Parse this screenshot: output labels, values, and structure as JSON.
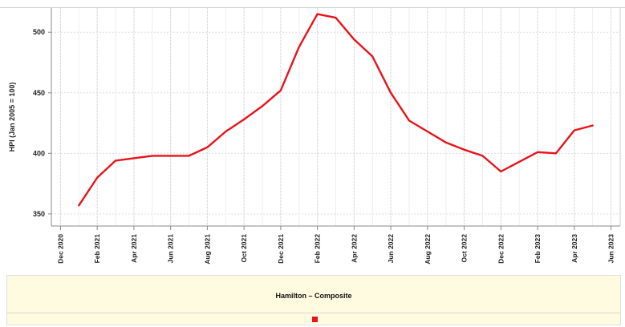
{
  "chart_data": {
    "type": "line",
    "title": "",
    "xlabel": "",
    "ylabel": "HPI (Jan 2005 = 100)",
    "ylim": [
      340,
      520
    ],
    "yticks": [
      350,
      400,
      450,
      500
    ],
    "xlim": [
      "2020-12",
      "2023-06"
    ],
    "xticks": [
      "Dec 2020",
      "Feb 2021",
      "Apr 2021",
      "Jun 2021",
      "Aug 2021",
      "Oct 2021",
      "Dec 2021",
      "Feb 2022",
      "Apr 2022",
      "Jun 2022",
      "Aug 2022",
      "Oct 2022",
      "Dec 2022",
      "Feb 2023",
      "Apr 2023",
      "Jun 2023"
    ],
    "grid": true,
    "legend_position": "bottom",
    "series": [
      {
        "name": "Hamilton – Composite",
        "color": "#e8131b",
        "x": [
          "2021-01",
          "2021-02",
          "2021-03",
          "2021-04",
          "2021-05",
          "2021-06",
          "2021-07",
          "2021-08",
          "2021-09",
          "2021-10",
          "2021-11",
          "2021-12",
          "2022-01",
          "2022-02",
          "2022-03",
          "2022-04",
          "2022-05",
          "2022-06",
          "2022-07",
          "2022-08",
          "2022-09",
          "2022-10",
          "2022-11",
          "2022-12",
          "2023-01",
          "2023-02",
          "2023-03",
          "2023-04",
          "2023-05"
        ],
        "values": [
          357,
          380,
          394,
          396,
          398,
          398,
          398,
          405,
          418,
          428,
          439,
          452,
          488,
          515,
          512,
          494,
          480,
          450,
          427,
          418,
          409,
          403,
          398,
          385,
          393,
          401,
          400,
          419,
          423
        ]
      }
    ]
  },
  "colors": {
    "line": "#e8131b",
    "legend_background": "#fffbe0",
    "grid": "#dddddd",
    "axis": "#888888"
  }
}
